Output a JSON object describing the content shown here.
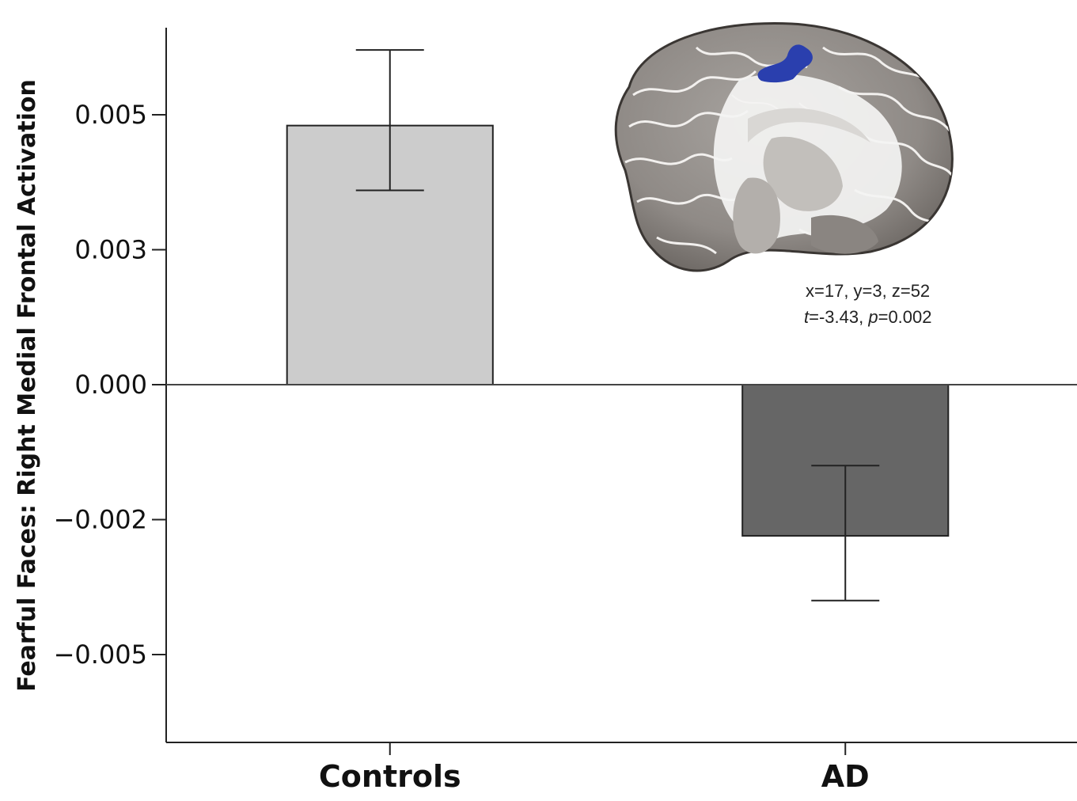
{
  "chart_data": {
    "type": "bar",
    "title": "",
    "xlabel": "",
    "ylabel": "Fearful Faces: Right Medial Frontal Activation",
    "categories": [
      "Controls",
      "AD"
    ],
    "values": [
      0.0048,
      -0.0028
    ],
    "error_upper": [
      0.0062,
      -0.0015
    ],
    "error_lower": [
      0.0036,
      -0.004
    ],
    "bar_colors": [
      "#cccccc",
      "#666666"
    ],
    "ylim": [
      -0.0066,
      0.0066
    ],
    "yticks": [
      0.005,
      0.0025,
      0.0,
      -0.0025,
      -0.005
    ],
    "ytick_labels": [
      "0.005",
      "0.003",
      "0.000",
      "−0.002",
      "−0.005"
    ],
    "grid": false,
    "annotation": {
      "line1": "x=17, y=3, z=52",
      "line2_t_label": "t",
      "line2_t_value": "=-3.43, ",
      "line2_p_label": "p",
      "line2_p_value": "=0.002"
    },
    "inset_image": "brain-sagittal-slice",
    "highlight_color": "#2a3fae"
  }
}
